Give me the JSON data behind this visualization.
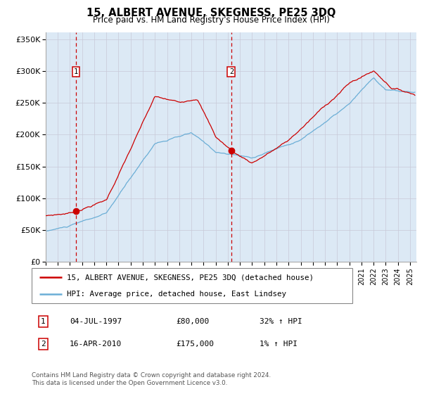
{
  "title": "15, ALBERT AVENUE, SKEGNESS, PE25 3DQ",
  "subtitle": "Price paid vs. HM Land Registry's House Price Index (HPI)",
  "legend_line1": "15, ALBERT AVENUE, SKEGNESS, PE25 3DQ (detached house)",
  "legend_line2": "HPI: Average price, detached house, East Lindsey",
  "annotation1_date": "04-JUL-1997",
  "annotation1_price": "£80,000",
  "annotation1_hpi": "32% ↑ HPI",
  "annotation2_date": "16-APR-2010",
  "annotation2_price": "£175,000",
  "annotation2_hpi": "1% ↑ HPI",
  "footer": "Contains HM Land Registry data © Crown copyright and database right 2024.\nThis data is licensed under the Open Government Licence v3.0.",
  "price_color": "#cc0000",
  "hpi_color": "#6baed6",
  "background_color": "#dce9f5",
  "sale1_x": 1997.5,
  "sale1_y": 80000,
  "sale2_x": 2010.29,
  "sale2_y": 175000,
  "vline_color": "#cc0000",
  "ylim": [
    0,
    360000
  ],
  "xlim": [
    1995.0,
    2025.5
  ],
  "yticks": [
    0,
    50000,
    100000,
    150000,
    200000,
    250000,
    300000,
    350000
  ],
  "ytick_labels": [
    "£0",
    "£50K",
    "£100K",
    "£150K",
    "£200K",
    "£250K",
    "£300K",
    "£350K"
  ]
}
